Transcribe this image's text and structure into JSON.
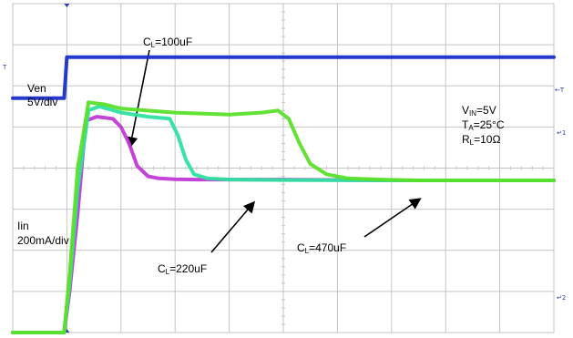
{
  "chart_data": {
    "type": "line",
    "title": "",
    "xlabel": "",
    "ylabel": "",
    "grid": true,
    "x_divisions": 10,
    "y_divisions": 8,
    "xlim": [
      0,
      10
    ],
    "ylim": [
      0,
      8
    ],
    "colors": {
      "grid": "#c4c4c4",
      "ven": "#1a2ecc",
      "cl100": "#c03ad4",
      "cl220": "#2ee0a0",
      "cl470": "#5ae02a",
      "marker": "#2a3aa8"
    },
    "series": [
      {
        "name": "Ven",
        "color": "#1a2ecc",
        "x": [
          0,
          0.95,
          1.0,
          10
        ],
        "y": [
          5.7,
          5.7,
          6.7,
          6.7
        ]
      },
      {
        "name": "CL=100uF",
        "color": "#c03ad4",
        "x": [
          0,
          0.95,
          1.05,
          1.2,
          1.35,
          1.55,
          1.85,
          2.0,
          2.15,
          2.3,
          2.5,
          2.7,
          3.0,
          3.4,
          4.0,
          5.0,
          7.0,
          9.0,
          10
        ],
        "y": [
          0.0,
          0.0,
          1.0,
          2.9,
          5.15,
          5.25,
          5.2,
          5.0,
          4.6,
          4.05,
          3.8,
          3.75,
          3.73,
          3.72,
          3.72,
          3.72,
          3.7,
          3.7,
          3.7
        ]
      },
      {
        "name": "CL=220uF",
        "color": "#2ee0a0",
        "x": [
          0,
          0.95,
          1.05,
          1.2,
          1.4,
          1.6,
          2.0,
          2.5,
          2.9,
          3.05,
          3.2,
          3.35,
          3.6,
          4.0,
          5.0,
          7.0,
          9.0,
          10
        ],
        "y": [
          0.0,
          0.0,
          1.2,
          3.5,
          5.4,
          5.5,
          5.35,
          5.25,
          5.2,
          4.8,
          4.2,
          3.85,
          3.75,
          3.72,
          3.71,
          3.7,
          3.7,
          3.7
        ]
      },
      {
        "name": "CL=470uF",
        "color": "#5ae02a",
        "x": [
          0,
          0.95,
          1.05,
          1.2,
          1.4,
          1.7,
          2.0,
          3.0,
          4.0,
          4.6,
          4.9,
          5.1,
          5.3,
          5.5,
          5.8,
          6.2,
          6.8,
          7.5,
          8.5,
          10
        ],
        "y": [
          0.0,
          0.0,
          1.4,
          4.0,
          5.6,
          5.55,
          5.45,
          5.35,
          5.3,
          5.35,
          5.4,
          5.2,
          4.6,
          4.1,
          3.85,
          3.75,
          3.72,
          3.7,
          3.7,
          3.7
        ]
      }
    ],
    "annotations": {
      "cl100": {
        "main": "C",
        "sub": "L",
        "tail": "=100uF"
      },
      "cl220": {
        "main": "C",
        "sub": "L",
        "tail": "=220uF"
      },
      "cl470": {
        "main": "C",
        "sub": "L",
        "tail": "=470uF"
      },
      "ven_name": "Ven",
      "ven_scale": "5V/div",
      "iin_name": "Iin",
      "iin_scale": "200mA/div",
      "vin": {
        "main": "V",
        "sub": "IN",
        "tail": "=5V"
      },
      "ta": {
        "main": "T",
        "sub": "A",
        "tail": "=25°C"
      },
      "rl": {
        "main": "R",
        "sub": "L",
        "tail": "=10Ω"
      }
    },
    "markers": {
      "ven_ref": "1",
      "iin_ref": "2",
      "trig": "T",
      "trig_left": "T"
    }
  }
}
